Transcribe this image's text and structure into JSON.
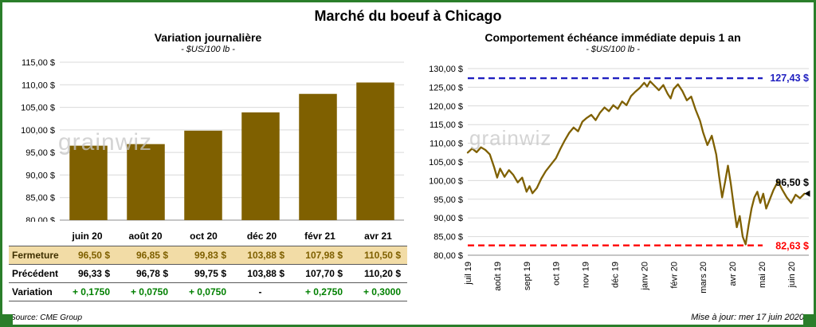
{
  "page": {
    "title": "Marché du boeuf à Chicago"
  },
  "watermark": "grainwiz",
  "footer": {
    "source": "Source: CME Group",
    "updated": "Mise à jour: mer 17 juin 2020"
  },
  "left": {
    "title": "Variation  journalière",
    "subtitle": "- $US/100 lb -",
    "table": {
      "header": [
        "juin 20",
        "août 20",
        "oct 20",
        "déc 20",
        "févr 21",
        "avr 21"
      ],
      "rows": [
        {
          "label": "Fermeture",
          "values": [
            "96,50  $",
            "96,85  $",
            "99,83  $",
            "103,88  $",
            "107,98  $",
            "110,50  $"
          ]
        },
        {
          "label": "Précédent",
          "values": [
            "96,33  $",
            "96,78  $",
            "99,75  $",
            "103,88  $",
            "107,70  $",
            "110,20  $"
          ]
        },
        {
          "label": "Variation",
          "values": [
            "+ 0,1750",
            "+ 0,0750",
            "+ 0,0750",
            "-",
            "+ 0,2750",
            "+ 0,3000"
          ]
        }
      ]
    }
  },
  "right": {
    "title": "Comportement  échéance immédiate depuis 1 an",
    "subtitle": "- $US/100 lb -"
  },
  "chart_data": [
    {
      "type": "bar",
      "title": "Variation journalière",
      "subtitle": "- $US/100 lb -",
      "categories": [
        "juin 20",
        "août 20",
        "oct 20",
        "déc 20",
        "févr 21",
        "avr 21"
      ],
      "values": [
        96.5,
        96.85,
        99.83,
        103.88,
        107.98,
        110.5
      ],
      "ylim": [
        80,
        115
      ],
      "ytick_step": 5,
      "bar_color": "#7f6000",
      "grid_color": "#d9d9d9"
    },
    {
      "type": "line",
      "title": "Comportement échéance immédiate depuis 1 an",
      "subtitle": "- $US/100 lb -",
      "x_labels": [
        "juil 19",
        "août 19",
        "sept 19",
        "oct 19",
        "nov 19",
        "déc 19",
        "janv 20",
        "févr 20",
        "mars 20",
        "avr 20",
        "mai 20",
        "juin 20"
      ],
      "x_max": 11.6,
      "ylim": [
        80,
        130
      ],
      "ytick_step": 5,
      "line_color": "#7f6000",
      "grid_color": "#d9d9d9",
      "max_line": {
        "value": 127.43,
        "label": "127,43 $",
        "color": "#2020c0"
      },
      "min_line": {
        "value": 82.63,
        "label": "82,63 $",
        "color": "#ff0000"
      },
      "last_label": {
        "value": 96.5,
        "label": "96,50 $",
        "color": "#000000"
      },
      "points": [
        [
          0.0,
          107.5
        ],
        [
          0.15,
          108.6
        ],
        [
          0.3,
          107.6
        ],
        [
          0.45,
          108.9
        ],
        [
          0.6,
          108.2
        ],
        [
          0.75,
          107.0
        ],
        [
          0.9,
          103.5
        ],
        [
          1.0,
          100.8
        ],
        [
          1.1,
          103.2
        ],
        [
          1.25,
          101.0
        ],
        [
          1.4,
          102.8
        ],
        [
          1.55,
          101.5
        ],
        [
          1.7,
          99.5
        ],
        [
          1.85,
          100.8
        ],
        [
          2.0,
          97.0
        ],
        [
          2.1,
          98.5
        ],
        [
          2.2,
          96.6
        ],
        [
          2.35,
          98.0
        ],
        [
          2.5,
          100.5
        ],
        [
          2.65,
          102.5
        ],
        [
          2.8,
          104.0
        ],
        [
          3.0,
          106.0
        ],
        [
          3.15,
          108.5
        ],
        [
          3.3,
          110.8
        ],
        [
          3.45,
          112.8
        ],
        [
          3.6,
          114.2
        ],
        [
          3.75,
          113.2
        ],
        [
          3.9,
          115.8
        ],
        [
          4.05,
          116.8
        ],
        [
          4.2,
          117.6
        ],
        [
          4.35,
          116.2
        ],
        [
          4.5,
          118.2
        ],
        [
          4.65,
          119.6
        ],
        [
          4.8,
          118.6
        ],
        [
          4.95,
          120.2
        ],
        [
          5.1,
          119.2
        ],
        [
          5.25,
          121.2
        ],
        [
          5.4,
          120.2
        ],
        [
          5.55,
          122.6
        ],
        [
          5.7,
          123.8
        ],
        [
          5.85,
          124.8
        ],
        [
          6.0,
          126.2
        ],
        [
          6.1,
          125.2
        ],
        [
          6.2,
          126.6
        ],
        [
          6.35,
          125.4
        ],
        [
          6.5,
          124.2
        ],
        [
          6.65,
          125.6
        ],
        [
          6.8,
          123.2
        ],
        [
          6.9,
          122.0
        ],
        [
          7.0,
          124.5
        ],
        [
          7.15,
          125.8
        ],
        [
          7.3,
          124.0
        ],
        [
          7.45,
          121.5
        ],
        [
          7.6,
          122.5
        ],
        [
          7.75,
          119.0
        ],
        [
          7.9,
          116.0
        ],
        [
          8.0,
          113.0
        ],
        [
          8.15,
          109.5
        ],
        [
          8.3,
          112.0
        ],
        [
          8.45,
          107.0
        ],
        [
          8.55,
          101.0
        ],
        [
          8.65,
          95.5
        ],
        [
          8.75,
          99.5
        ],
        [
          8.85,
          104.0
        ],
        [
          8.95,
          99.0
        ],
        [
          9.05,
          93.0
        ],
        [
          9.15,
          87.5
        ],
        [
          9.25,
          90.5
        ],
        [
          9.35,
          85.0
        ],
        [
          9.45,
          82.9
        ],
        [
          9.55,
          88.0
        ],
        [
          9.65,
          92.5
        ],
        [
          9.75,
          95.5
        ],
        [
          9.85,
          97.0
        ],
        [
          9.95,
          94.0
        ],
        [
          10.05,
          96.5
        ],
        [
          10.15,
          92.5
        ],
        [
          10.25,
          94.5
        ],
        [
          10.4,
          97.5
        ],
        [
          10.55,
          99.8
        ],
        [
          10.7,
          97.5
        ],
        [
          10.85,
          95.5
        ],
        [
          11.0,
          94.0
        ],
        [
          11.15,
          96.2
        ],
        [
          11.3,
          95.3
        ],
        [
          11.45,
          96.5
        ]
      ]
    }
  ]
}
